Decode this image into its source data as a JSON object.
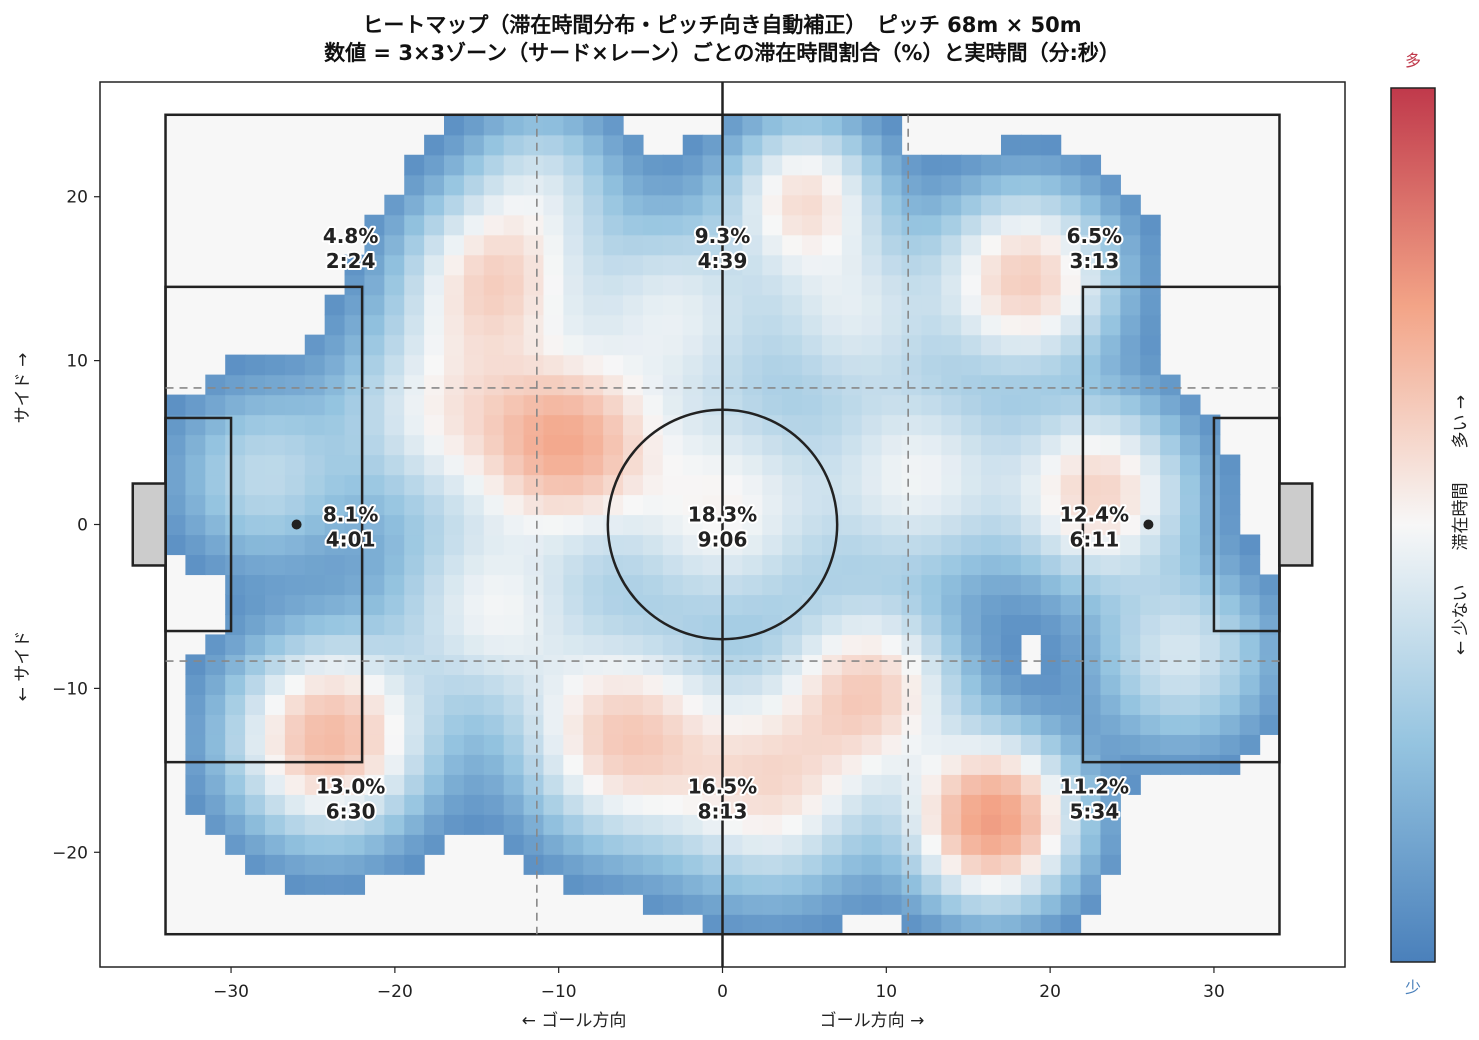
{
  "chart_data": {
    "type": "heatmap",
    "title": "ヒートマップ（滞在時間分布・ピッチ向き自動補正）　ピッチ 68m × 50m",
    "subtitle": "数値 = 3×3ゾーン（サード×レーン）ごとの滞在時間割合（%）と実時間（分:秒）",
    "xlabel_left": "← ゴール方向",
    "xlabel_right": "ゴール方向 →",
    "ylabel_top": "サイド →",
    "ylabel_bottom": "← サイド",
    "xlim": [
      -38,
      38
    ],
    "ylim": [
      -27,
      27
    ],
    "x_ticks": [
      -30,
      -20,
      -10,
      0,
      10,
      20,
      30
    ],
    "y_ticks": [
      -20,
      -10,
      0,
      10,
      20
    ],
    "x_tick_labels": [
      "−30",
      "−20",
      "−10",
      "0",
      "10",
      "20",
      "30"
    ],
    "y_tick_labels": [
      "−20",
      "−10",
      "0",
      "10",
      "20"
    ],
    "pitch": {
      "length": 68,
      "width": 50
    },
    "colorbar": {
      "label": "← 少ない　　滞在時間　　多い →",
      "high_label": "多",
      "low_label": "少",
      "high_color": "#c0394b",
      "low_color": "#4a80bb",
      "mid_color": "#f7f7f7"
    },
    "zones": [
      {
        "x": -22.7,
        "y": 17,
        "pct": "4.8%",
        "time": "2:24"
      },
      {
        "x": 0,
        "y": 17,
        "pct": "9.3%",
        "time": "4:39"
      },
      {
        "x": 22.7,
        "y": 17,
        "pct": "6.5%",
        "time": "3:13"
      },
      {
        "x": -22.7,
        "y": 0,
        "pct": "8.1%",
        "time": "4:01"
      },
      {
        "x": 0,
        "y": 0,
        "pct": "18.3%",
        "time": "9:06"
      },
      {
        "x": 22.7,
        "y": 0,
        "pct": "12.4%",
        "time": "6:11"
      },
      {
        "x": -22.7,
        "y": -16.6,
        "pct": "13.0%",
        "time": "6:30"
      },
      {
        "x": 0,
        "y": -16.6,
        "pct": "16.5%",
        "time": "8:13"
      },
      {
        "x": 22.7,
        "y": -16.6,
        "pct": "11.2%",
        "time": "5:34"
      }
    ],
    "hotspots": [
      {
        "x": -9.5,
        "y": 5,
        "w": 1.0,
        "s": 3.5
      },
      {
        "x": -24,
        "y": -13,
        "w": 1.0,
        "s": 3.8
      },
      {
        "x": 16.5,
        "y": -18,
        "w": 1.25,
        "s": 3.2
      },
      {
        "x": 23,
        "y": 2,
        "w": 0.8,
        "s": 3.5
      },
      {
        "x": 0,
        "y": 1,
        "w": 0.6,
        "s": 4.5
      },
      {
        "x": 5,
        "y": 20,
        "w": 0.7,
        "s": 3.0
      },
      {
        "x": 18.5,
        "y": 15,
        "w": 0.85,
        "s": 3.5
      },
      {
        "x": -14,
        "y": 15,
        "w": 0.75,
        "s": 3.5
      },
      {
        "x": -6,
        "y": -13,
        "w": 0.85,
        "s": 4.0
      },
      {
        "x": 9,
        "y": -10,
        "w": 0.8,
        "s": 3.5
      },
      {
        "x": 3,
        "y": -16,
        "w": 0.7,
        "s": 4.0
      },
      {
        "x": -14,
        "y": -5,
        "w": 0.55,
        "s": 4.0
      },
      {
        "x": 12,
        "y": 3,
        "w": 0.55,
        "s": 4.0
      },
      {
        "x": -3,
        "y": 13,
        "w": 0.5,
        "s": 4.0
      },
      {
        "x": -17,
        "y": 7,
        "w": 0.55,
        "s": 4.0
      },
      {
        "x": 28,
        "y": -8,
        "w": 0.45,
        "s": 3.5
      },
      {
        "x": -28,
        "y": 3,
        "w": 0.35,
        "s": 3.5
      },
      {
        "x": 8,
        "y": 13,
        "w": 0.45,
        "s": 3.5
      },
      {
        "x": -11,
        "y": 21,
        "w": 0.35,
        "s": 3.0
      }
    ]
  }
}
